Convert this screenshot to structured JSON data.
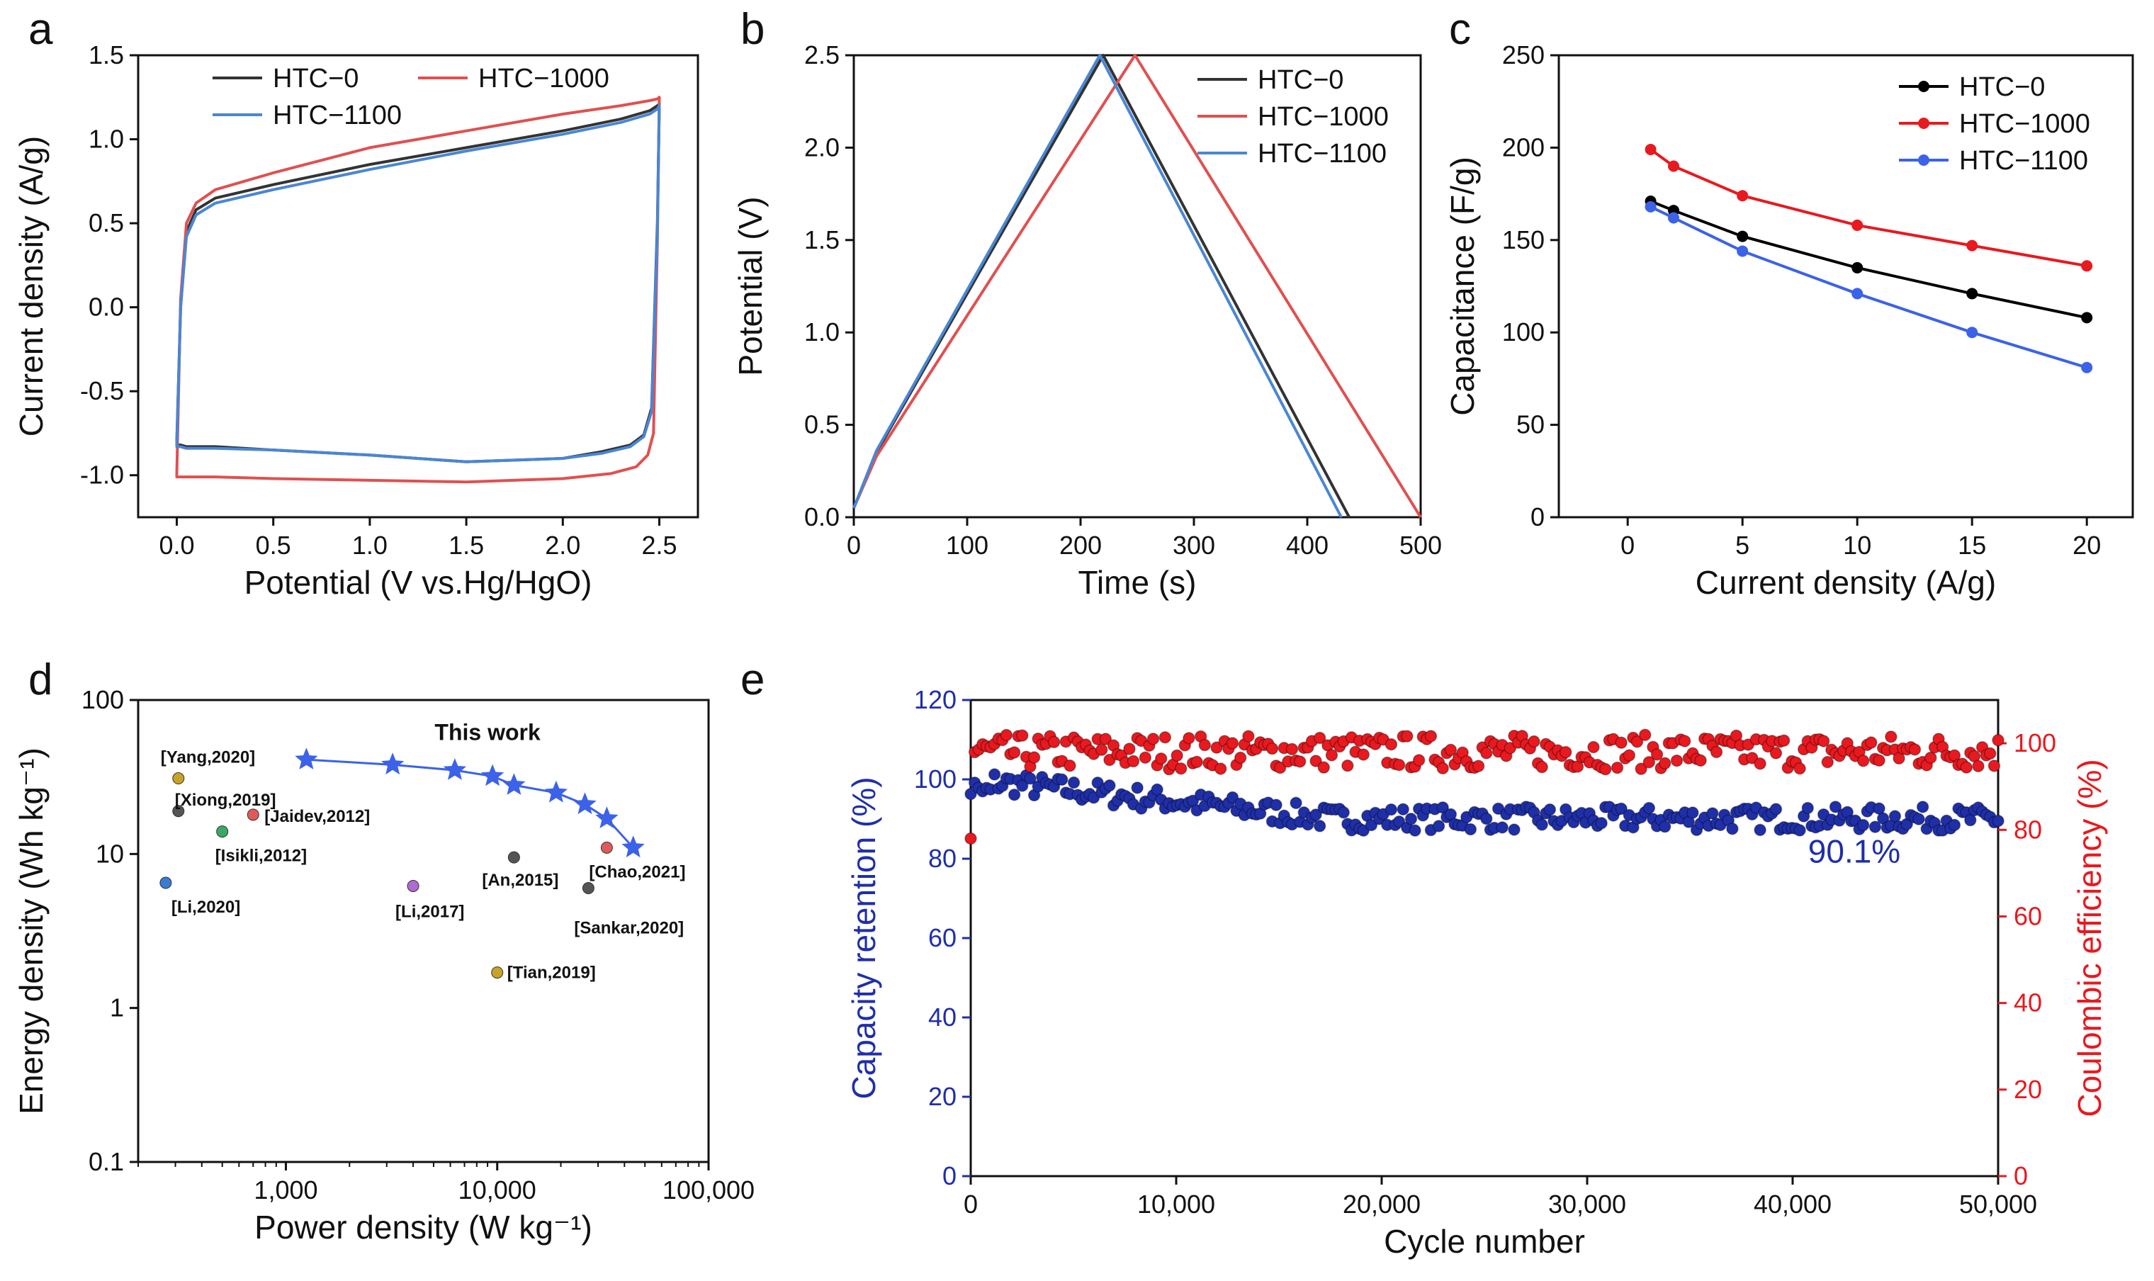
{
  "chart_data": [
    {
      "id": "a",
      "type": "line",
      "panel_label": "a",
      "title": "",
      "xlabel": "Potential (V vs.Hg/HgO)",
      "ylabel": "Current density (A/g)",
      "xlim": [
        -0.2,
        2.7
      ],
      "ylim": [
        -1.25,
        1.5
      ],
      "xticks": [
        0.0,
        0.5,
        1.0,
        1.5,
        2.0,
        2.5
      ],
      "yticks": [
        -1.0,
        -0.5,
        0.0,
        0.5,
        1.0,
        1.5
      ],
      "xtick_labels": [
        "0.0",
        "0.5",
        "1.0",
        "1.5",
        "2.0",
        "2.5"
      ],
      "ytick_labels": [
        "-1.0",
        "-0.5",
        "0.0",
        "0.5",
        "1.0",
        "1.5"
      ],
      "legend": [
        "HTC−0",
        "HTC−1000",
        "HTC−1100"
      ],
      "series": [
        {
          "name": "HTC−0",
          "color": "#333333",
          "x": [
            0.0,
            0.02,
            0.05,
            0.1,
            0.2,
            0.5,
            1.0,
            1.5,
            2.0,
            2.3,
            2.45,
            2.49,
            2.5,
            2.49,
            2.46,
            2.42,
            2.35,
            2.2,
            2.0,
            1.5,
            1.0,
            0.5,
            0.2,
            0.1,
            0.05,
            0.02,
            0.0,
            0.0
          ],
          "y": [
            -0.8,
            0.0,
            0.45,
            0.58,
            0.65,
            0.73,
            0.85,
            0.95,
            1.05,
            1.12,
            1.17,
            1.2,
            1.21,
            0.5,
            -0.6,
            -0.76,
            -0.82,
            -0.86,
            -0.9,
            -0.92,
            -0.88,
            -0.85,
            -0.83,
            -0.83,
            -0.83,
            -0.82,
            -0.82,
            -0.8
          ]
        },
        {
          "name": "HTC−1000",
          "color": "#e05050",
          "x": [
            0.0,
            0.02,
            0.05,
            0.1,
            0.2,
            0.5,
            1.0,
            1.5,
            2.0,
            2.3,
            2.45,
            2.49,
            2.5,
            2.49,
            2.47,
            2.44,
            2.38,
            2.25,
            2.0,
            1.5,
            1.0,
            0.5,
            0.2,
            0.1,
            0.05,
            0.02,
            0.0,
            0.0
          ],
          "y": [
            -1.0,
            0.05,
            0.5,
            0.62,
            0.7,
            0.8,
            0.95,
            1.05,
            1.15,
            1.2,
            1.23,
            1.24,
            1.25,
            0.4,
            -0.75,
            -0.88,
            -0.95,
            -0.99,
            -1.02,
            -1.04,
            -1.03,
            -1.02,
            -1.01,
            -1.01,
            -1.01,
            -1.01,
            -1.01,
            -1.0
          ]
        },
        {
          "name": "HTC−1100",
          "color": "#4a86d4",
          "x": [
            0.0,
            0.02,
            0.05,
            0.1,
            0.2,
            0.5,
            1.0,
            1.5,
            2.0,
            2.3,
            2.45,
            2.49,
            2.5,
            2.49,
            2.46,
            2.42,
            2.35,
            2.2,
            2.0,
            1.5,
            1.0,
            0.5,
            0.2,
            0.1,
            0.05,
            0.02,
            0.0,
            0.0
          ],
          "y": [
            -0.82,
            0.0,
            0.42,
            0.55,
            0.62,
            0.7,
            0.82,
            0.93,
            1.03,
            1.1,
            1.15,
            1.18,
            1.2,
            0.45,
            -0.62,
            -0.77,
            -0.83,
            -0.87,
            -0.9,
            -0.92,
            -0.88,
            -0.85,
            -0.84,
            -0.84,
            -0.84,
            -0.83,
            -0.83,
            -0.82
          ]
        }
      ]
    },
    {
      "id": "b",
      "type": "line",
      "panel_label": "b",
      "title": "",
      "xlabel": "Time (s)",
      "ylabel": "Potential (V)",
      "xlim": [
        0,
        500
      ],
      "ylim": [
        0,
        2.5
      ],
      "xticks": [
        0,
        100,
        200,
        300,
        400,
        500
      ],
      "yticks": [
        0.0,
        0.5,
        1.0,
        1.5,
        2.0,
        2.5
      ],
      "xtick_labels": [
        "0",
        "100",
        "200",
        "300",
        "400",
        "500"
      ],
      "ytick_labels": [
        "0.0",
        "0.5",
        "1.0",
        "1.5",
        "2.0",
        "2.5"
      ],
      "legend": [
        "HTC−0",
        "HTC−1000",
        "HTC−1100"
      ],
      "series": [
        {
          "name": "HTC−0",
          "color": "#333333",
          "x": [
            0,
            20,
            220,
            437
          ],
          "y": [
            0.05,
            0.35,
            2.5,
            0
          ]
        },
        {
          "name": "HTC−1000",
          "color": "#e05050",
          "x": [
            0,
            20,
            248,
            500
          ],
          "y": [
            0.05,
            0.33,
            2.5,
            0
          ]
        },
        {
          "name": "HTC−1100",
          "color": "#4a86d4",
          "x": [
            0,
            20,
            217,
            430
          ],
          "y": [
            0.05,
            0.36,
            2.5,
            0
          ]
        }
      ]
    },
    {
      "id": "c",
      "type": "line",
      "panel_label": "c",
      "title": "",
      "xlabel": "Current density (A/g)",
      "ylabel": "Capacitance (F/g)",
      "xlim": [
        -3,
        22
      ],
      "ylim": [
        0,
        250
      ],
      "xticks": [
        0,
        5,
        10,
        15,
        20
      ],
      "yticks": [
        0,
        50,
        100,
        150,
        200,
        250
      ],
      "xtick_labels": [
        "0",
        "5",
        "10",
        "15",
        "20"
      ],
      "ytick_labels": [
        "0",
        "50",
        "100",
        "150",
        "200",
        "250"
      ],
      "legend": [
        "HTC−0",
        "HTC−1000",
        "HTC−1100"
      ],
      "categories": [
        1,
        2,
        5,
        10,
        15,
        20
      ],
      "series": [
        {
          "name": "HTC−0",
          "color": "#000000",
          "values": [
            171,
            166,
            152,
            135,
            121,
            108
          ]
        },
        {
          "name": "HTC−1000",
          "color": "#e8191f",
          "values": [
            199,
            190,
            174,
            158,
            147,
            136
          ]
        },
        {
          "name": "HTC−1100",
          "color": "#3b62e8",
          "values": [
            168,
            162,
            144,
            121,
            100,
            81
          ]
        }
      ]
    },
    {
      "id": "d",
      "type": "scatter",
      "panel_label": "d",
      "title": "",
      "xlabel": "Power density (W kg⁻¹)",
      "ylabel": "Energy density (Wh kg⁻¹)",
      "xscale": "log",
      "yscale": "log",
      "xlim": [
        200,
        100000
      ],
      "ylim": [
        0.1,
        100
      ],
      "xticks": [
        1000,
        10000,
        100000
      ],
      "yticks": [
        0.1,
        1,
        10,
        100
      ],
      "xtick_labels": [
        "1,000",
        "10,000",
        "100,000"
      ],
      "ytick_labels": [
        "0.1",
        "1",
        "10",
        "100"
      ],
      "annotation": "This work",
      "this_work": {
        "color": "#3b62e8",
        "x": [
          1250,
          3200,
          6300,
          9500,
          12000,
          19000,
          26000,
          33000,
          44000
        ],
        "y": [
          41,
          38,
          35,
          32,
          28,
          25,
          21,
          17,
          11
        ]
      },
      "references": [
        {
          "label": "[Yang,2020]",
          "x": 310,
          "y": 31,
          "color": "#c9a227"
        },
        {
          "label": "[Xiong,2019]",
          "x": 310,
          "y": 19,
          "color": "#555555"
        },
        {
          "label": "[Jaidev,2012]",
          "x": 700,
          "y": 18,
          "color": "#e05a5a"
        },
        {
          "label": "[Isikli,2012]",
          "x": 500,
          "y": 14,
          "color": "#3aa867"
        },
        {
          "label": "[Li,2020]",
          "x": 270,
          "y": 6.5,
          "color": "#3a7bd5"
        },
        {
          "label": "[Li,2017]",
          "x": 4000,
          "y": 6.2,
          "color": "#b06ad4"
        },
        {
          "label": "[An,2015]",
          "x": 12000,
          "y": 9.5,
          "color": "#555555"
        },
        {
          "label": "[Chao,2021]",
          "x": 33000,
          "y": 11,
          "color": "#e05a5a"
        },
        {
          "label": "[Sankar,2020]",
          "x": 27000,
          "y": 6,
          "color": "#555555"
        },
        {
          "label": "[Tian,2019]",
          "x": 10000,
          "y": 1.7,
          "color": "#c9a227"
        }
      ]
    },
    {
      "id": "e",
      "type": "scatter",
      "panel_label": "e",
      "title": "",
      "xlabel": "Cycle number",
      "ylabel": "Capacity retention (%)",
      "y2label": "Coulombic efficiency (%)",
      "xlim": [
        0,
        50000
      ],
      "ylim": [
        0,
        120
      ],
      "y2lim": [
        0,
        110
      ],
      "xticks": [
        0,
        10000,
        20000,
        30000,
        40000,
        50000
      ],
      "yticks": [
        0,
        20,
        40,
        60,
        80,
        100,
        120
      ],
      "y2ticks": [
        0,
        20,
        40,
        60,
        80,
        100
      ],
      "xtick_labels": [
        "0",
        "10,000",
        "20,000",
        "30,000",
        "40,000",
        "50,000"
      ],
      "ytick_labels": [
        "0",
        "20",
        "40",
        "60",
        "80",
        "100",
        "120"
      ],
      "y2tick_labels": [
        "0",
        "20",
        "40",
        "60",
        "80",
        "100"
      ],
      "annotation": "90.1%",
      "series": [
        {
          "name": "Capacity retention",
          "axis": "left",
          "color": "#1f2fa8",
          "start": 100,
          "end": 90.1,
          "spread": 3,
          "count": 260
        },
        {
          "name": "Coulombic efficiency",
          "axis": "right",
          "color": "#e8191f",
          "start": 98,
          "end": 98,
          "spread": 4,
          "count": 260,
          "first_point": 78
        }
      ]
    }
  ]
}
